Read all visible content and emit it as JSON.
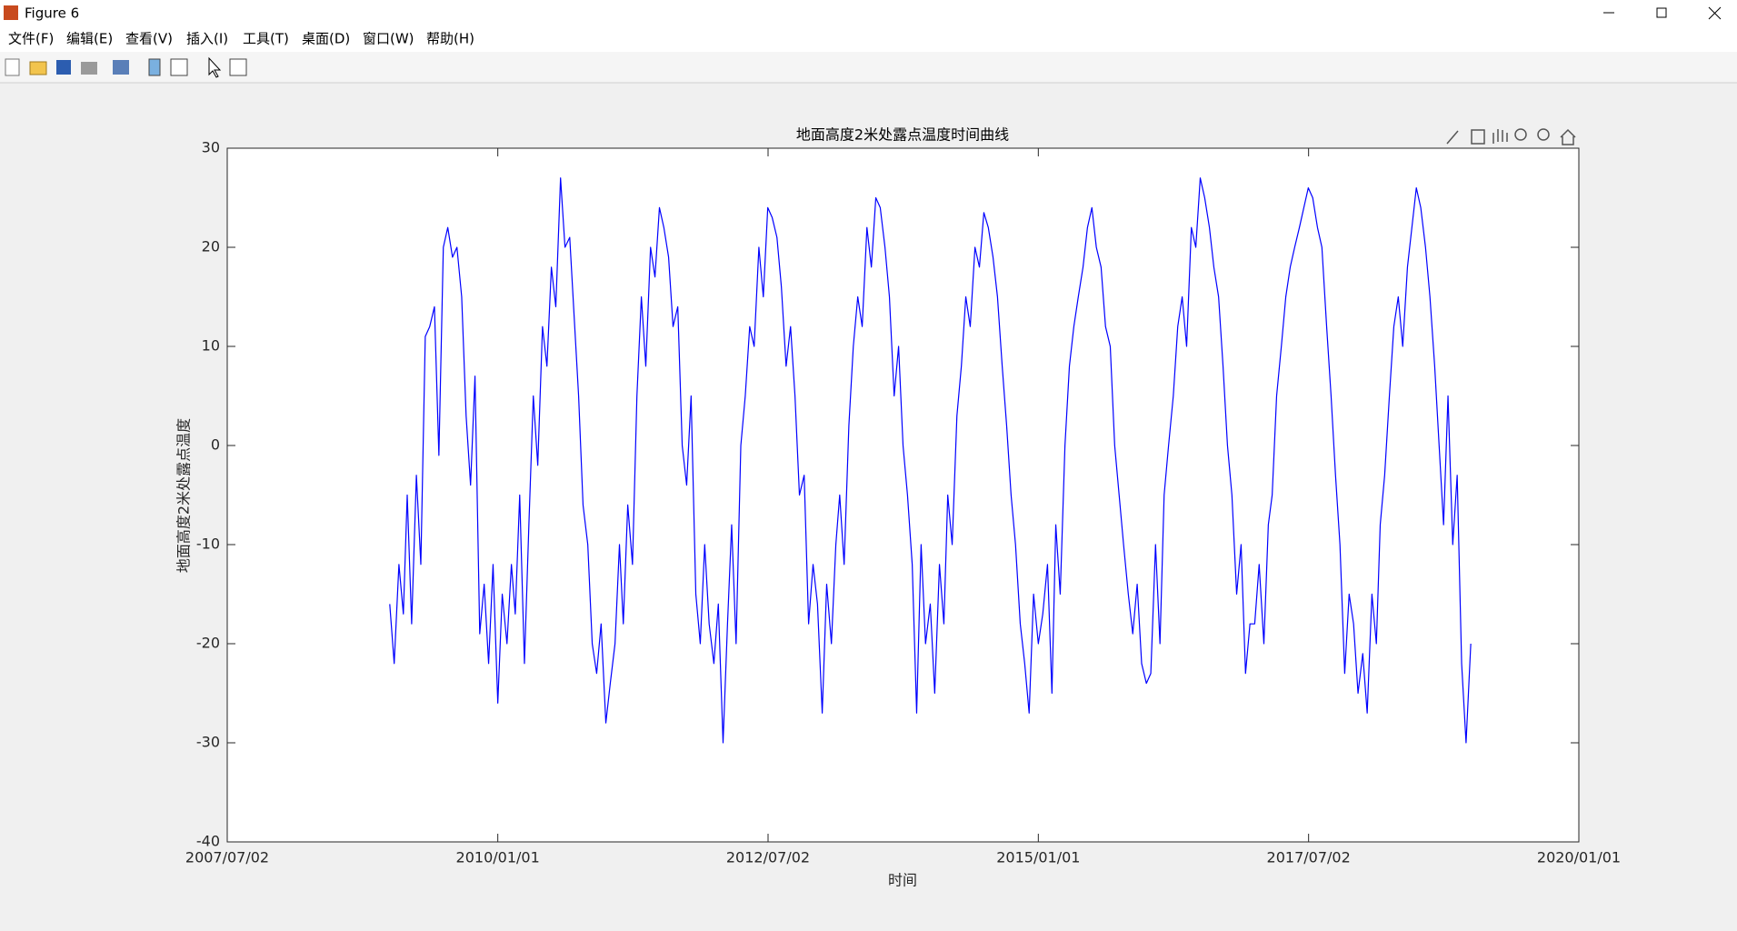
{
  "window": {
    "title": "Figure 6"
  },
  "menu": [
    "文件(F)",
    "编辑(E)",
    "查看(V)",
    "插入(I)",
    "工具(T)",
    "桌面(D)",
    "窗口(W)",
    "帮助(H)"
  ],
  "chart_data": {
    "type": "line",
    "title": "地面高度2米处露点温度时间曲线",
    "xlabel": "时间",
    "ylabel": "地面高度2米处露点温度",
    "color": "#0000ff",
    "xlim": [
      "2007/07/02",
      "2020/01/01"
    ],
    "xticks": [
      "2007/07/02",
      "2010/01/01",
      "2012/07/02",
      "2015/01/01",
      "2017/07/02",
      "2020/01/01"
    ],
    "ylim": [
      -40,
      30
    ],
    "yticks": [
      -40,
      -30,
      -20,
      -10,
      0,
      10,
      20,
      30
    ],
    "x": [
      "2009/01/01",
      "2009/01/16",
      "2009/02/01",
      "2009/02/16",
      "2009/03/01",
      "2009/03/16",
      "2009/04/01",
      "2009/04/16",
      "2009/05/01",
      "2009/05/16",
      "2009/06/01",
      "2009/06/16",
      "2009/07/01",
      "2009/07/16",
      "2009/08/01",
      "2009/08/16",
      "2009/09/01",
      "2009/09/16",
      "2009/10/01",
      "2009/10/16",
      "2009/11/01",
      "2009/11/16",
      "2009/12/01",
      "2009/12/16",
      "2010/01/01",
      "2010/01/16",
      "2010/02/01",
      "2010/02/16",
      "2010/03/01",
      "2010/03/16",
      "2010/04/01",
      "2010/04/16",
      "2010/05/01",
      "2010/05/16",
      "2010/06/01",
      "2010/06/16",
      "2010/07/01",
      "2010/07/16",
      "2010/08/01",
      "2010/08/16",
      "2010/09/01",
      "2010/09/16",
      "2010/10/01",
      "2010/10/16",
      "2010/11/01",
      "2010/11/16",
      "2010/12/01",
      "2010/12/16",
      "2011/01/01",
      "2011/01/16",
      "2011/02/01",
      "2011/02/16",
      "2011/03/01",
      "2011/03/16",
      "2011/04/01",
      "2011/04/16",
      "2011/05/01",
      "2011/05/16",
      "2011/06/01",
      "2011/06/16",
      "2011/07/01",
      "2011/07/16",
      "2011/08/01",
      "2011/08/16",
      "2011/09/01",
      "2011/09/16",
      "2011/10/01",
      "2011/10/16",
      "2011/11/01",
      "2011/11/16",
      "2011/12/01",
      "2011/12/16",
      "2012/01/01",
      "2012/01/16",
      "2012/02/01",
      "2012/02/16",
      "2012/03/01",
      "2012/03/16",
      "2012/04/01",
      "2012/04/16",
      "2012/05/01",
      "2012/05/16",
      "2012/06/01",
      "2012/06/16",
      "2012/07/01",
      "2012/07/16",
      "2012/08/01",
      "2012/08/16",
      "2012/09/01",
      "2012/09/16",
      "2012/10/01",
      "2012/10/16",
      "2012/11/01",
      "2012/11/16",
      "2012/12/01",
      "2012/12/16",
      "2013/01/01",
      "2013/01/16",
      "2013/02/01",
      "2013/02/16",
      "2013/03/01",
      "2013/03/16",
      "2013/04/01",
      "2013/04/16",
      "2013/05/01",
      "2013/05/16",
      "2013/06/01",
      "2013/06/16",
      "2013/07/01",
      "2013/07/16",
      "2013/08/01",
      "2013/08/16",
      "2013/09/01",
      "2013/09/16",
      "2013/10/01",
      "2013/10/16",
      "2013/11/01",
      "2013/11/16",
      "2013/12/01",
      "2013/12/16",
      "2014/01/01",
      "2014/01/16",
      "2014/02/01",
      "2014/02/16",
      "2014/03/01",
      "2014/03/16",
      "2014/04/01",
      "2014/04/16",
      "2014/05/01",
      "2014/05/16",
      "2014/06/01",
      "2014/06/16",
      "2014/07/01",
      "2014/07/16",
      "2014/08/01",
      "2014/08/16",
      "2014/09/01",
      "2014/09/16",
      "2014/10/01",
      "2014/10/16",
      "2014/11/01",
      "2014/11/16",
      "2014/12/01",
      "2014/12/16",
      "2015/01/01",
      "2015/01/16",
      "2015/02/01",
      "2015/02/16",
      "2015/03/01",
      "2015/03/16",
      "2015/04/01",
      "2015/04/16",
      "2015/05/01",
      "2015/05/16",
      "2015/06/01",
      "2015/06/16",
      "2015/07/01",
      "2015/07/16",
      "2015/08/01",
      "2015/08/16",
      "2015/09/01",
      "2015/09/16",
      "2015/10/01",
      "2015/10/16",
      "2015/11/01",
      "2015/11/16",
      "2015/12/01",
      "2015/12/16",
      "2016/01/01",
      "2016/01/16",
      "2016/02/01",
      "2016/02/16",
      "2016/03/01",
      "2016/03/16",
      "2016/04/01",
      "2016/04/16",
      "2016/05/01",
      "2016/05/16",
      "2016/06/01",
      "2016/06/16",
      "2016/07/01",
      "2016/07/16",
      "2016/08/01",
      "2016/08/16",
      "2016/09/01",
      "2016/09/16",
      "2016/10/01",
      "2016/10/16",
      "2016/11/01",
      "2016/11/16",
      "2016/12/01",
      "2016/12/16",
      "2017/01/01",
      "2017/01/16",
      "2017/02/01",
      "2017/02/16",
      "2017/03/01",
      "2017/03/16",
      "2017/04/01",
      "2017/04/16",
      "2017/05/01",
      "2017/05/16",
      "2017/06/01",
      "2017/06/16",
      "2017/07/01",
      "2017/07/16",
      "2017/08/01",
      "2017/08/16",
      "2017/09/01",
      "2017/09/16",
      "2017/10/01",
      "2017/10/16",
      "2017/11/01",
      "2017/11/16",
      "2017/12/01",
      "2017/12/16",
      "2018/01/01",
      "2018/01/16",
      "2018/02/01",
      "2018/02/16",
      "2018/03/01",
      "2018/03/16",
      "2018/04/01",
      "2018/04/16",
      "2018/05/01",
      "2018/05/16",
      "2018/06/01",
      "2018/06/16",
      "2018/07/01",
      "2018/07/16",
      "2018/08/01",
      "2018/08/16",
      "2018/09/01",
      "2018/09/16",
      "2018/10/01",
      "2018/10/16",
      "2018/11/01",
      "2018/11/16",
      "2018/12/01",
      "2018/12/16",
      "2019/01/01"
    ],
    "values": [
      -16,
      -22,
      -12,
      -17,
      -5,
      -18,
      -3,
      -12,
      11,
      12,
      14,
      -1,
      20,
      22,
      19,
      20,
      15,
      3,
      -4,
      7,
      -19,
      -14,
      -22,
      -12,
      -26,
      -15,
      -20,
      -12,
      -17,
      -5,
      -22,
      -8,
      5,
      -2,
      12,
      8,
      18,
      14,
      27,
      20,
      21,
      13,
      5,
      -6,
      -10,
      -20,
      -23,
      -18,
      -28,
      -24,
      -20,
      -10,
      -18,
      -6,
      -12,
      5,
      15,
      8,
      20,
      17,
      24,
      22,
      19,
      12,
      14,
      0,
      -4,
      5,
      -15,
      -20,
      -10,
      -18,
      -22,
      -16,
      -30,
      -18,
      -8,
      -20,
      0,
      5,
      12,
      10,
      20,
      15,
      24,
      23,
      21,
      16,
      8,
      12,
      5,
      -5,
      -3,
      -18,
      -12,
      -16,
      -27,
      -14,
      -20,
      -10,
      -5,
      -12,
      2,
      10,
      15,
      12,
      22,
      18,
      25,
      24,
      20,
      15,
      5,
      10,
      0,
      -5,
      -12,
      -27,
      -10,
      -20,
      -16,
      -25,
      -12,
      -18,
      -5,
      -10,
      3,
      8,
      15,
      12,
      20,
      18,
      23.5,
      22,
      19,
      15,
      8,
      2,
      -5,
      -10,
      -18,
      -22,
      -27,
      -15,
      -20,
      -17,
      -12,
      -25,
      -8,
      -15,
      0,
      8,
      12,
      15,
      18,
      22,
      24,
      20,
      18,
      12,
      10,
      0,
      -5,
      -10,
      -15,
      -19,
      -14,
      -22,
      -24,
      -23,
      -10,
      -20,
      -5,
      0,
      5,
      12,
      15,
      10,
      22,
      20,
      27,
      25,
      22,
      18,
      15,
      8,
      0,
      -5,
      -15,
      -10,
      -23,
      -18,
      -18,
      -12,
      -20,
      -8,
      -5,
      5,
      10,
      15,
      18,
      20,
      22,
      24,
      26,
      25,
      22,
      20,
      12,
      5,
      -3,
      -10,
      -23,
      -15,
      -18,
      -25,
      -21,
      -27,
      -15,
      -20,
      -8,
      -3,
      5,
      12,
      15,
      10,
      18,
      22,
      26,
      24,
      20,
      15,
      8,
      0,
      -8,
      5,
      -10,
      -3,
      -22,
      -30,
      -20
    ]
  }
}
